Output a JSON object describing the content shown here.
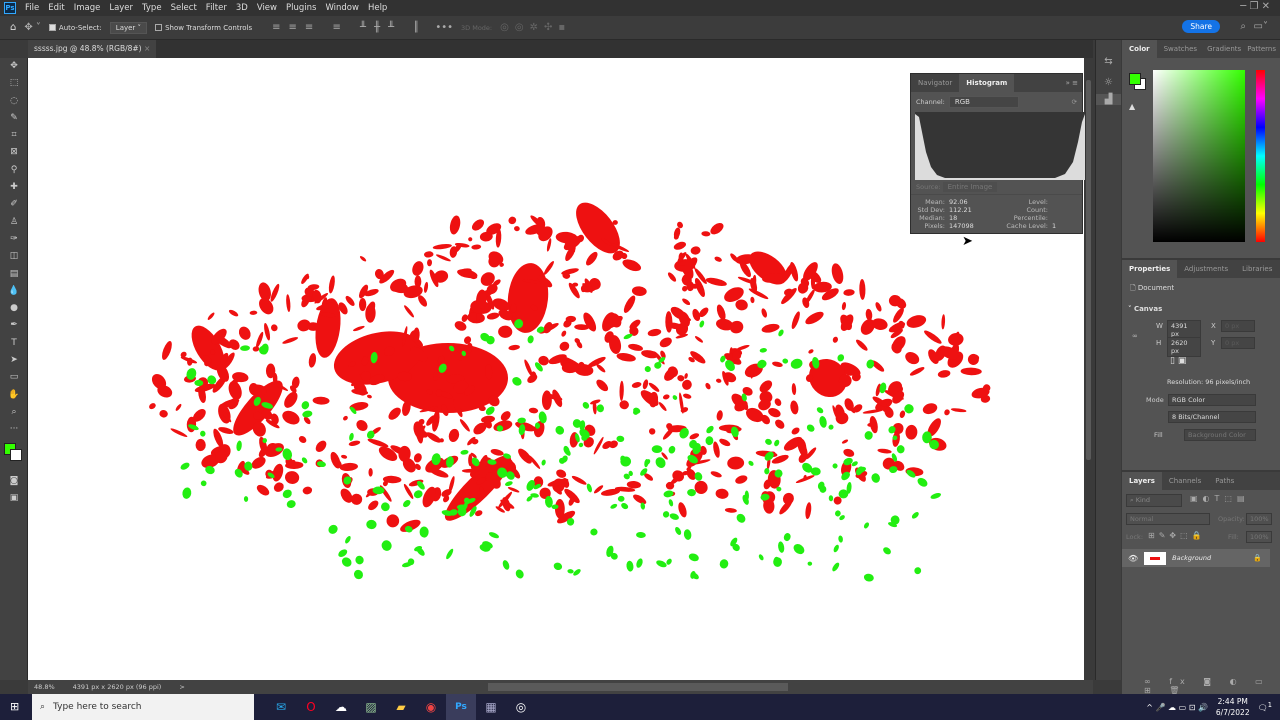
{
  "menubar": {
    "logo": "Ps",
    "items": [
      "File",
      "Edit",
      "Image",
      "Layer",
      "Type",
      "Select",
      "Filter",
      "3D",
      "View",
      "Plugins",
      "Window",
      "Help"
    ]
  },
  "options": {
    "auto_select_label": "Auto-Select:",
    "auto_select_checked": true,
    "layer_select": "Layer",
    "show_transform_label": "Show Transform Controls",
    "more": "•••",
    "mode_3d": "3D Mode:",
    "share": "Share"
  },
  "document": {
    "tab_title": "sssss.jpg @ 48.8% (RGB/8#)",
    "close": "×"
  },
  "status": {
    "zoom": "48.8%",
    "info": "4391 px x 2620 px (96 ppi)",
    "arrow": ">"
  },
  "histogram": {
    "tabs": [
      "Navigator",
      "Histogram"
    ],
    "active_tab": "Histogram",
    "channel_label": "Channel:",
    "channel": "RGB",
    "source_label": "Source:",
    "source": "Entire Image",
    "stats_left": [
      [
        "Mean:",
        "92.06"
      ],
      [
        "Std Dev:",
        "112.21"
      ],
      [
        "Median:",
        "18"
      ],
      [
        "Pixels:",
        "147098"
      ]
    ],
    "stats_right": [
      [
        "Level:",
        ""
      ],
      [
        "Count:",
        ""
      ],
      [
        "Percentile:",
        ""
      ],
      [
        "Cache Level:",
        "1"
      ]
    ]
  },
  "color_panel": {
    "tabs": [
      "Color",
      "Swatches",
      "Gradients",
      "Patterns"
    ],
    "foreground": "#33ff00",
    "background": "#ffffff"
  },
  "properties": {
    "tabs": [
      "Properties",
      "Adjustments",
      "Libraries"
    ],
    "doc_label": "Document",
    "canvas_label": "Canvas",
    "w_label": "W",
    "w": "4391 px",
    "h_label": "H",
    "h": "2620 px",
    "x_label": "X",
    "y_label": "Y",
    "x": "0 px",
    "y": "0 px",
    "resolution": "Resolution: 96 pixels/inch",
    "mode_label": "Mode",
    "mode": "RGB Color",
    "depth": "8 Bits/Channel",
    "fill_label": "Fill",
    "fill": "Background Color"
  },
  "layers": {
    "tabs": [
      "Layers",
      "Channels",
      "Paths"
    ],
    "kind": "Kind",
    "blend": "Normal",
    "opacity_label": "Opacity:",
    "opacity": "100%",
    "lock_label": "Lock:",
    "fill_label": "Fill:",
    "fill": "100%",
    "items": [
      {
        "name": "Background",
        "visible": true,
        "locked": true
      }
    ]
  },
  "taskbar": {
    "search_placeholder": "Type here to search",
    "time": "2:44 PM",
    "date": "6/7/2022",
    "notifications": "1"
  },
  "colors": {
    "red": "#ee1111",
    "green": "#22ee11"
  }
}
